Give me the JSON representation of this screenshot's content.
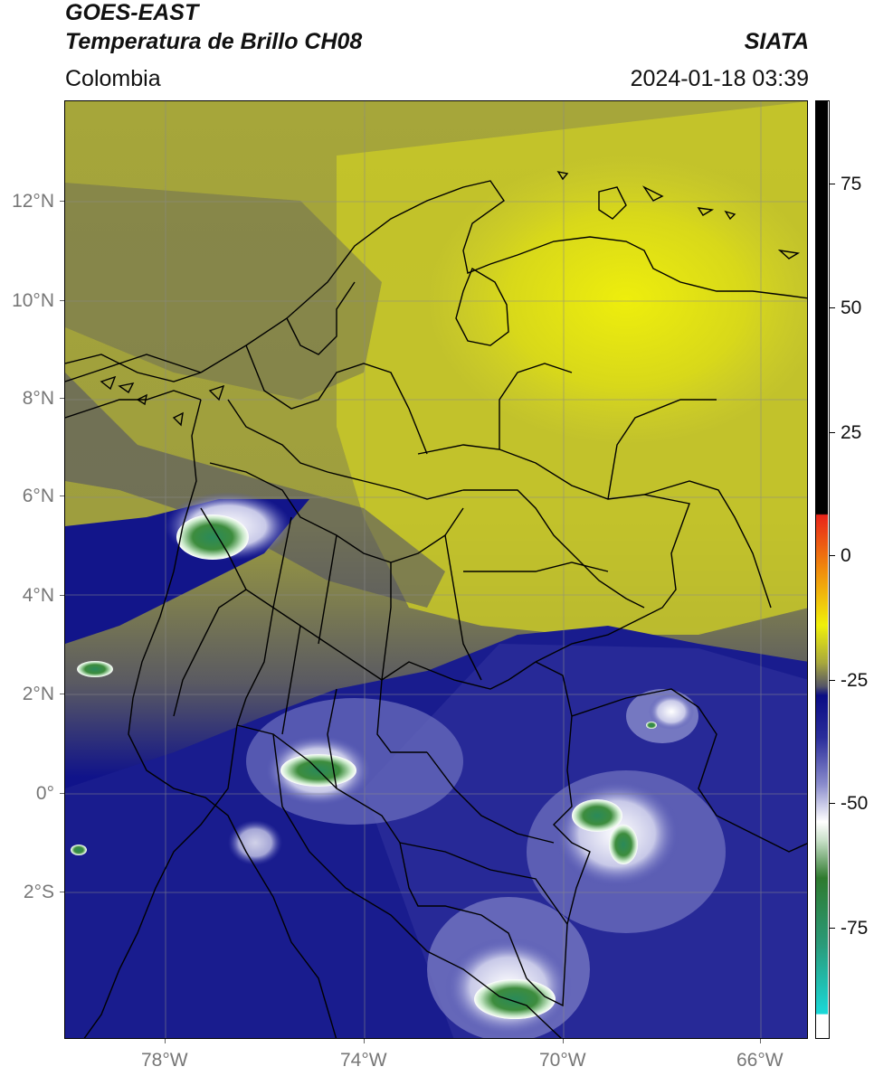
{
  "header": {
    "line1": "GOES-EAST",
    "line2": "Temperatura de Brillo CH08",
    "brand": "SIATA",
    "region": "Colombia",
    "datetime": "2024-01-18 03:39"
  },
  "map": {
    "lat_labels": [
      "12°N",
      "10°N",
      "8°N",
      "6°N",
      "4°N",
      "2°N",
      "0°",
      "2°S"
    ],
    "lon_labels": [
      "78°W",
      "74°W",
      "70°W",
      "66°W"
    ]
  },
  "colorbar": {
    "labels": [
      "75",
      "50",
      "25",
      "0",
      "-25",
      "-50",
      "-75"
    ],
    "colors": {
      "black": "#000000",
      "red": "#e8241a",
      "orange": "#f08a0c",
      "yellow": "#f0f00a",
      "olive": "#a8a83c",
      "gray": "#555566",
      "navy": "#0a0c84",
      "lavender": "#8a8ccc",
      "white": "#ffffff",
      "green": "#2e7a2e",
      "teal": "#2a9a78",
      "cyan": "#1ad8d8"
    }
  }
}
